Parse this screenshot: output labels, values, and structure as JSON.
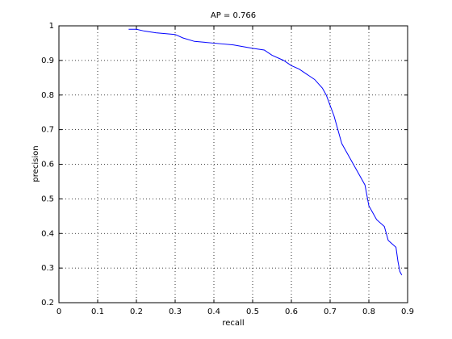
{
  "chart_data": {
    "type": "line",
    "title": "AP = 0.766",
    "x_label": "recall",
    "y_label": "precision",
    "xlim": [
      0,
      0.9
    ],
    "ylim": [
      0.2,
      1
    ],
    "xticks": [
      0,
      0.1,
      0.2,
      0.3,
      0.4,
      0.5,
      0.6,
      0.7,
      0.8,
      0.9
    ],
    "yticks": [
      0.2,
      0.3,
      0.4,
      0.5,
      0.6,
      0.7,
      0.8,
      0.9,
      1
    ],
    "grid": true,
    "x": [
      0.18,
      0.2,
      0.22,
      0.25,
      0.3,
      0.32,
      0.35,
      0.4,
      0.45,
      0.5,
      0.53,
      0.55,
      0.58,
      0.6,
      0.62,
      0.64,
      0.66,
      0.68,
      0.69,
      0.7,
      0.71,
      0.72,
      0.73,
      0.74,
      0.76,
      0.78,
      0.79,
      0.8,
      0.81,
      0.82,
      0.84,
      0.85,
      0.87,
      0.875,
      0.88,
      0.885
    ],
    "series": [
      {
        "color": "#0000ff",
        "values": [
          0.99,
          0.99,
          0.985,
          0.98,
          0.975,
          0.965,
          0.955,
          0.95,
          0.945,
          0.935,
          0.93,
          0.915,
          0.9,
          0.885,
          0.875,
          0.86,
          0.845,
          0.82,
          0.8,
          0.77,
          0.74,
          0.7,
          0.66,
          0.64,
          0.6,
          0.56,
          0.54,
          0.48,
          0.46,
          0.44,
          0.42,
          0.38,
          0.36,
          0.32,
          0.29,
          0.28
        ]
      }
    ]
  }
}
